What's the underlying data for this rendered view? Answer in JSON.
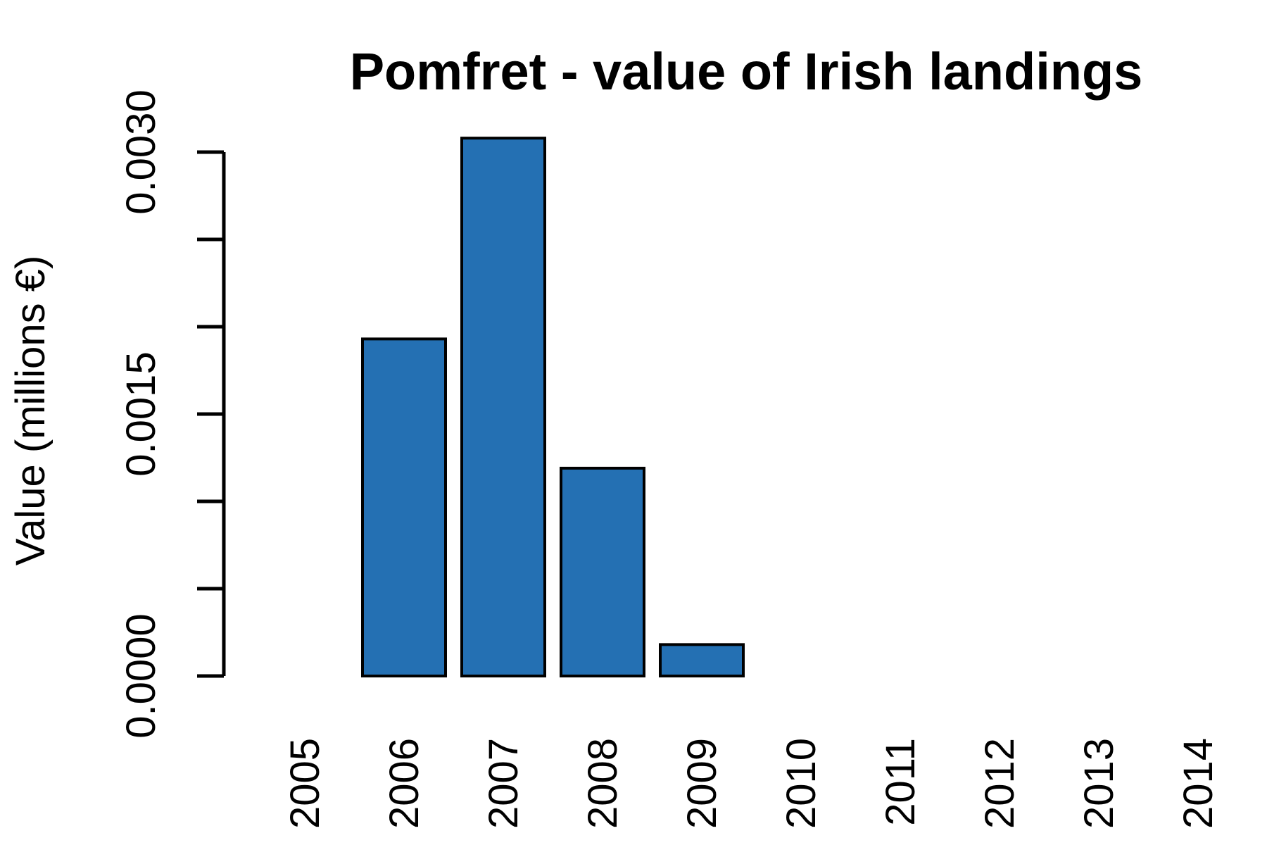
{
  "chart_data": {
    "type": "bar",
    "title": "Pomfret - value of Irish landings",
    "xlabel": "",
    "ylabel": "Value (millions €)",
    "categories": [
      "2005",
      "2006",
      "2007",
      "2008",
      "2009",
      "2010",
      "2011",
      "2012",
      "2013",
      "2014"
    ],
    "values": [
      0,
      0.00193,
      0.00308,
      0.00119,
      0.00018,
      0,
      0,
      0,
      0,
      0
    ],
    "ylim": [
      0,
      0.003
    ],
    "y_ticks": [
      0,
      0.0005,
      0.001,
      0.0015,
      0.002,
      0.0025,
      0.003
    ],
    "y_tick_labels": [
      "0.0000",
      "",
      "",
      "0.0015",
      "",
      "",
      "0.0030"
    ],
    "bar_color": "#2470b3",
    "grid": false,
    "legend": "none"
  }
}
